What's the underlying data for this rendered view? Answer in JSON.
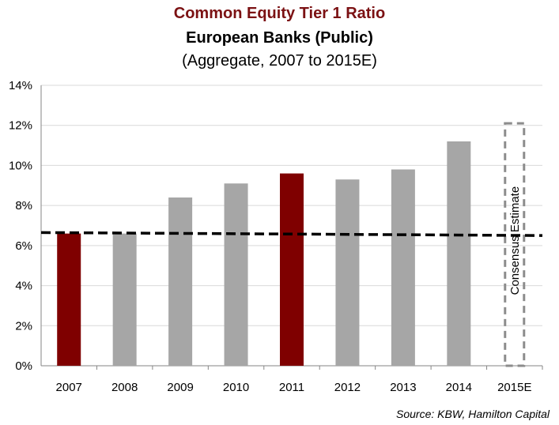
{
  "chart_data": {
    "type": "bar",
    "title": "Common Equity Tier 1 Ratio",
    "subtitle": "European Banks (Public)",
    "subtitle2": "(Aggregate, 2007 to 2015E)",
    "categories": [
      "2007",
      "2008",
      "2009",
      "2010",
      "2011",
      "2012",
      "2013",
      "2014",
      "2015E"
    ],
    "values": [
      6.6,
      6.6,
      8.4,
      9.1,
      9.6,
      9.3,
      9.8,
      11.2,
      12.1
    ],
    "bar_colors": [
      "#7f0000",
      "#a6a6a6",
      "#a6a6a6",
      "#a6a6a6",
      "#7f0000",
      "#a6a6a6",
      "#a6a6a6",
      "#a6a6a6",
      "none"
    ],
    "ylim": [
      0,
      14
    ],
    "yticks": [
      0,
      2,
      4,
      6,
      8,
      10,
      12,
      14
    ],
    "ytick_labels": [
      "0%",
      "2%",
      "4%",
      "6%",
      "8%",
      "10%",
      "12%",
      "14%"
    ],
    "grid": true,
    "reference_line": {
      "style": "dashed",
      "color": "#000000",
      "start_value": 6.65,
      "end_value": 6.5
    },
    "estimate_annotation": "Consensus Estimate",
    "source": "Source: KBW, Hamilton Capital"
  }
}
